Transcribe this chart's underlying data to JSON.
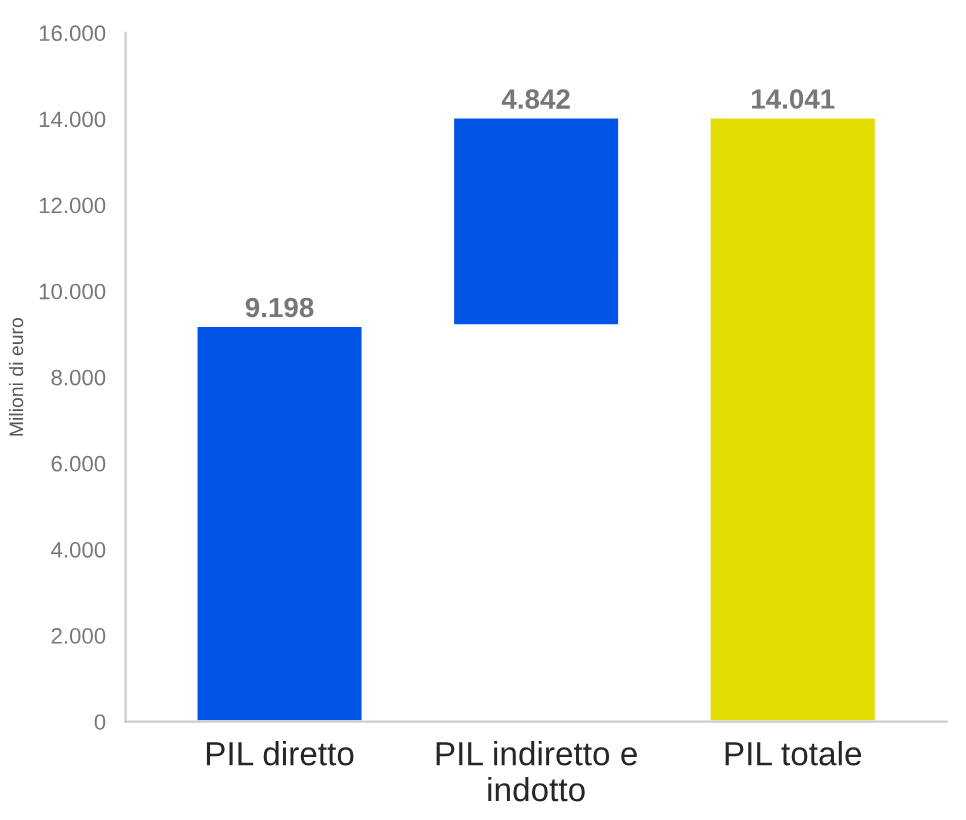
{
  "chart_data": {
    "type": "bar",
    "ylabel": "Milioni di euro",
    "categories": [
      "PIL diretto",
      "PIL indiretto e\nindotto",
      "PIL totale"
    ],
    "values": [
      9198,
      4842,
      14041
    ],
    "base": [
      0,
      9198,
      0
    ],
    "colors": [
      "#0055e6",
      "#0055e6",
      "#e3dc00"
    ],
    "value_labels": [
      "9.198",
      "4.842",
      "14.041"
    ],
    "ylim": [
      0,
      16000
    ],
    "yticks": [
      {
        "value": 0,
        "label": "0"
      },
      {
        "value": 2000,
        "label": "2.000"
      },
      {
        "value": 4000,
        "label": "4.000"
      },
      {
        "value": 6000,
        "label": "6.000"
      },
      {
        "value": 8000,
        "label": "8.000"
      },
      {
        "value": 10000,
        "label": "10.000"
      },
      {
        "value": 12000,
        "label": "12.000"
      },
      {
        "value": 14000,
        "label": "14.000"
      },
      {
        "value": 16000,
        "label": "16.000"
      }
    ],
    "grid": false,
    "legend": false
  }
}
